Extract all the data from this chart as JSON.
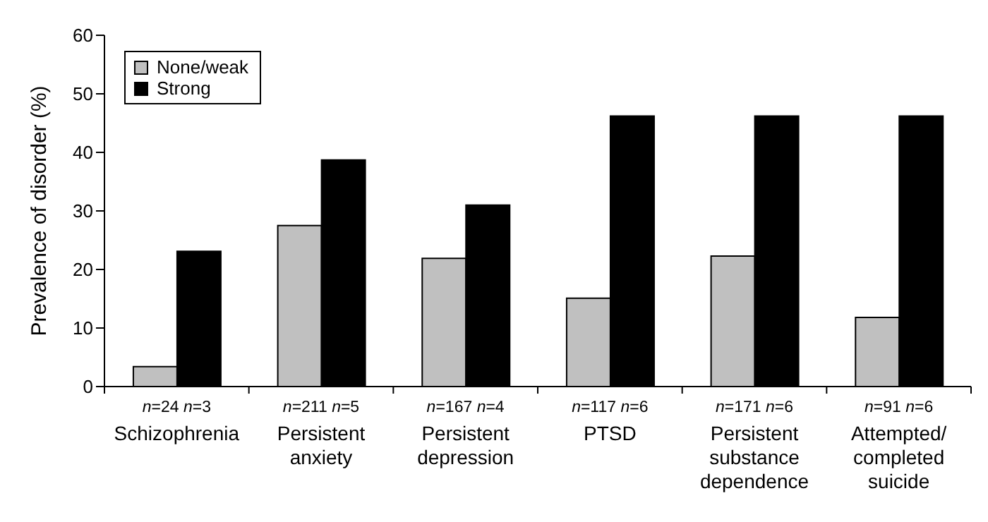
{
  "chart_data": {
    "type": "bar",
    "ylabel": "Prevalence of disorder (%)",
    "categories": [
      "Schizophrenia",
      "Persistent anxiety",
      "Persistent depression",
      "PTSD",
      "Persistent substance dependence",
      "Attempted/ completed suicide"
    ],
    "series": [
      {
        "name": "None/weak",
        "color": "#c0c0c0",
        "values": [
          3.4,
          27.5,
          21.9,
          15.1,
          22.3,
          11.8
        ]
      },
      {
        "name": "Strong",
        "color": "#000000",
        "values": [
          23.1,
          38.7,
          31.0,
          46.2,
          46.2,
          46.2
        ]
      }
    ],
    "annotations": [
      "n=24 n=3",
      "n=211 n=5",
      "n=167 n=4",
      "n=117 n=6",
      "n=171 n=6",
      "n=91 n=6"
    ],
    "ylim": [
      0,
      60
    ],
    "yticks": [
      0,
      10,
      20,
      30,
      40,
      50,
      60
    ],
    "grid": false,
    "legend": "top left"
  }
}
